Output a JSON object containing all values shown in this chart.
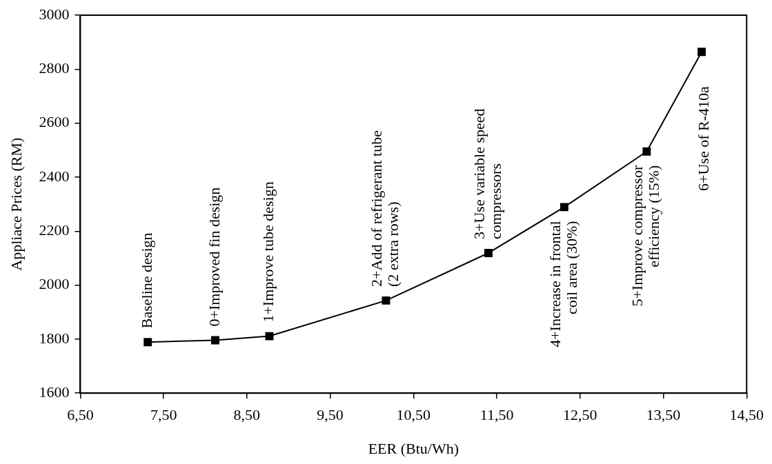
{
  "chart_data": {
    "type": "line",
    "xlabel": "EER (Btu/Wh)",
    "ylabel": "Appliace Prices (RM)",
    "x": [
      7.31,
      8.12,
      8.77,
      10.17,
      11.4,
      12.31,
      13.3,
      13.96
    ],
    "series": [
      {
        "color": "#000000",
        "values": [
          1789,
          1796,
          1811,
          1943,
          2119,
          2289,
          2495,
          2864
        ]
      }
    ],
    "xlim": [
      6.5,
      14.5
    ],
    "xticks": [
      {
        "value": 6.5,
        "label": "6,50"
      },
      {
        "value": 7.5,
        "label": "7,50"
      },
      {
        "value": 8.5,
        "label": "8,50"
      },
      {
        "value": 9.5,
        "label": "9,50"
      },
      {
        "value": 10.5,
        "label": "10,50"
      },
      {
        "value": 11.5,
        "label": "11,50"
      },
      {
        "value": 12.5,
        "label": "12,50"
      },
      {
        "value": 13.5,
        "label": "13,50"
      },
      {
        "value": 14.5,
        "label": "14,50"
      }
    ],
    "ylim": [
      1600,
      3000
    ],
    "yticks": [
      1600,
      1800,
      2000,
      2200,
      2400,
      2600,
      2800,
      3000
    ],
    "grid": false,
    "legend": false,
    "marker": "square",
    "line_style": "solid",
    "annotations": [
      {
        "text": "Baseline design",
        "x": 7.31,
        "y": 1789
      },
      {
        "text": "0+Improved fin design",
        "x": 8.12,
        "y": 1796
      },
      {
        "text": "1+Improve tube design",
        "x": 8.77,
        "y": 1811
      },
      {
        "text": "2+Add of refrigerant tube\n(2 extra rows)",
        "x": 10.17,
        "y": 1943
      },
      {
        "text": "3+Use variable speed\ncompressors",
        "x": 11.4,
        "y": 2119
      },
      {
        "text": "4+Increase in frontal\ncoil area (30%)",
        "x": 12.31,
        "y": 2289
      },
      {
        "text": "5+Improve compressor\nefficiency (15%)",
        "x": 13.3,
        "y": 2495
      },
      {
        "text": "6+Use of R-410a",
        "x": 13.96,
        "y": 2864
      }
    ]
  }
}
